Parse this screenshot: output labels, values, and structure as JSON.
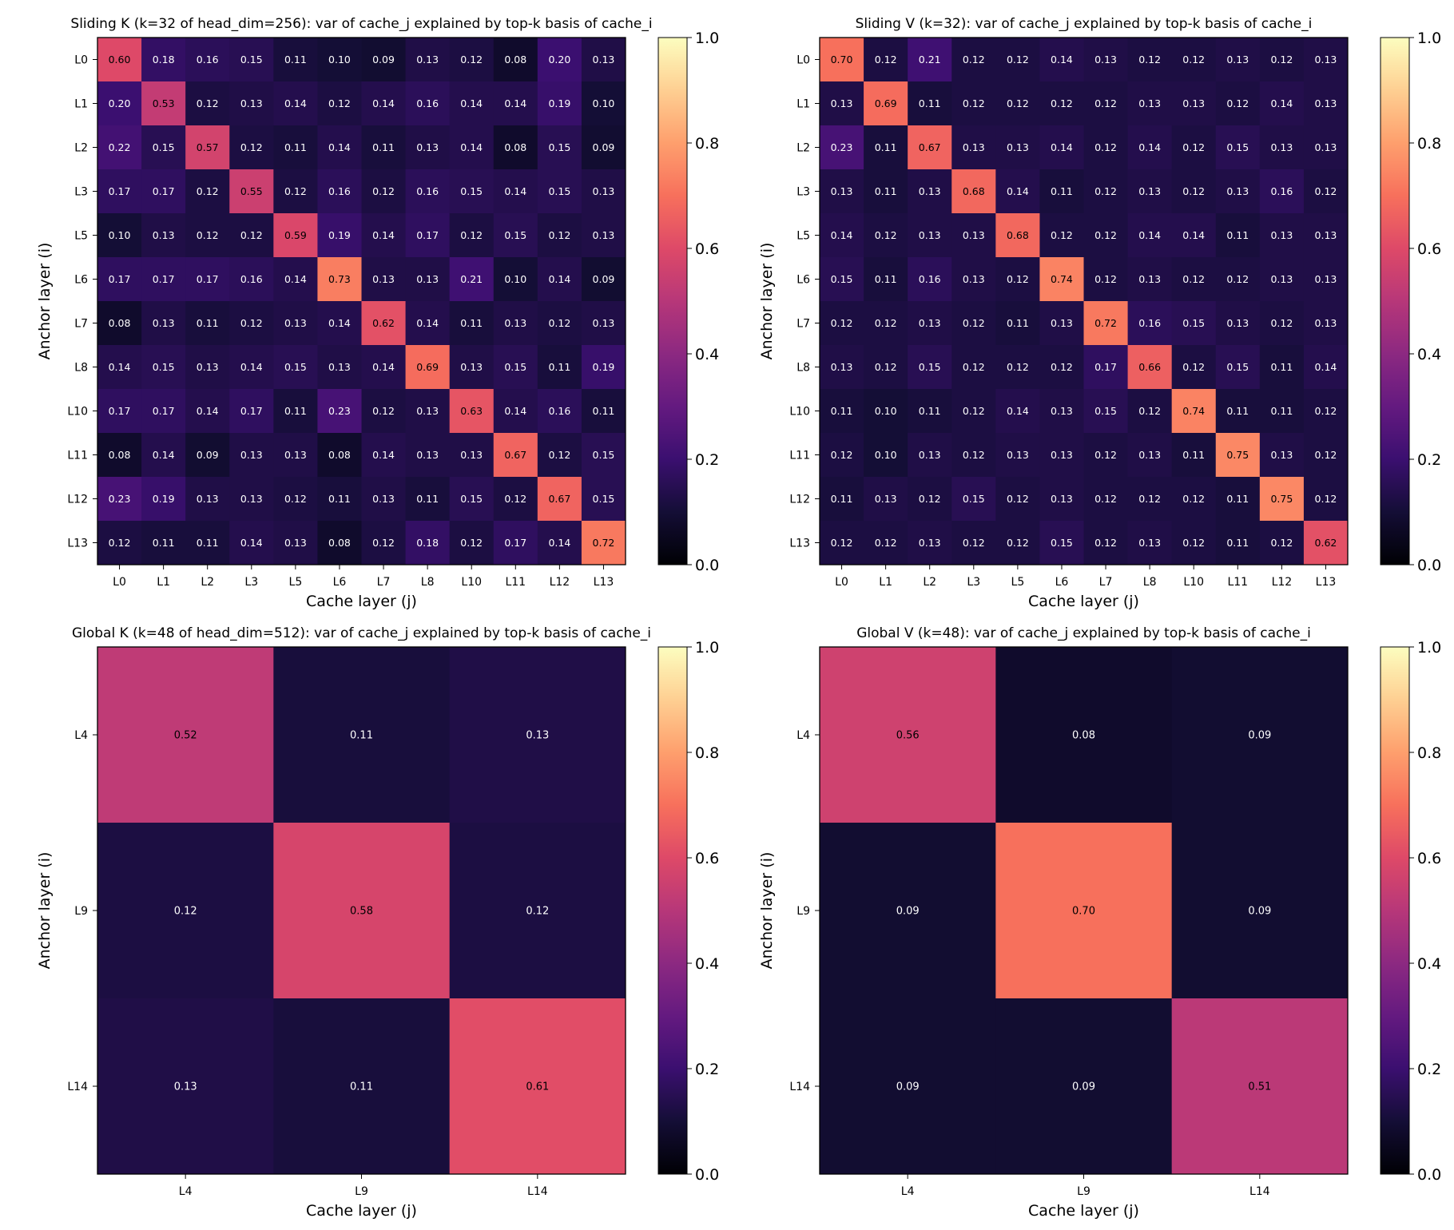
{
  "chart_data": [
    {
      "type": "heatmap",
      "title": "Sliding K (k=32 of head_dim=256): var of cache_j explained by top-k basis of cache_i",
      "xlabel": "Cache layer (j)",
      "ylabel": "Anchor layer (i)",
      "rows": [
        "L0",
        "L1",
        "L2",
        "L3",
        "L5",
        "L6",
        "L7",
        "L8",
        "L10",
        "L11",
        "L12",
        "L13"
      ],
      "cols": [
        "L0",
        "L1",
        "L2",
        "L3",
        "L5",
        "L6",
        "L7",
        "L8",
        "L10",
        "L11",
        "L12",
        "L13"
      ],
      "values": [
        [
          0.6,
          0.18,
          0.16,
          0.15,
          0.11,
          0.1,
          0.09,
          0.13,
          0.12,
          0.08,
          0.2,
          0.13
        ],
        [
          0.2,
          0.53,
          0.12,
          0.13,
          0.14,
          0.12,
          0.14,
          0.16,
          0.14,
          0.14,
          0.19,
          0.1
        ],
        [
          0.22,
          0.15,
          0.57,
          0.12,
          0.11,
          0.14,
          0.11,
          0.13,
          0.14,
          0.08,
          0.15,
          0.09
        ],
        [
          0.17,
          0.17,
          0.12,
          0.55,
          0.12,
          0.16,
          0.12,
          0.16,
          0.15,
          0.14,
          0.15,
          0.13
        ],
        [
          0.1,
          0.13,
          0.12,
          0.12,
          0.59,
          0.19,
          0.14,
          0.17,
          0.12,
          0.15,
          0.12,
          0.13
        ],
        [
          0.17,
          0.17,
          0.17,
          0.16,
          0.14,
          0.73,
          0.13,
          0.13,
          0.21,
          0.1,
          0.14,
          0.09
        ],
        [
          0.08,
          0.13,
          0.11,
          0.12,
          0.13,
          0.14,
          0.62,
          0.14,
          0.11,
          0.13,
          0.12,
          0.13
        ],
        [
          0.14,
          0.15,
          0.13,
          0.14,
          0.15,
          0.13,
          0.14,
          0.69,
          0.13,
          0.15,
          0.11,
          0.19
        ],
        [
          0.17,
          0.17,
          0.14,
          0.17,
          0.11,
          0.23,
          0.12,
          0.13,
          0.63,
          0.14,
          0.16,
          0.11
        ],
        [
          0.08,
          0.14,
          0.09,
          0.13,
          0.13,
          0.08,
          0.14,
          0.13,
          0.13,
          0.67,
          0.12,
          0.15
        ],
        [
          0.23,
          0.19,
          0.13,
          0.13,
          0.12,
          0.11,
          0.13,
          0.11,
          0.15,
          0.12,
          0.67,
          0.15
        ],
        [
          0.12,
          0.11,
          0.11,
          0.14,
          0.13,
          0.08,
          0.12,
          0.18,
          0.12,
          0.17,
          0.14,
          0.72
        ]
      ],
      "vmin": 0.0,
      "vmax": 1.0,
      "colormap": "magma",
      "colorbar_ticks": [
        "0.0",
        "0.2",
        "0.4",
        "0.6",
        "0.8",
        "1.0"
      ]
    },
    {
      "type": "heatmap",
      "title": "Sliding V (k=32): var of cache_j explained by top-k basis of cache_i",
      "xlabel": "Cache layer (j)",
      "ylabel": "Anchor layer (i)",
      "rows": [
        "L0",
        "L1",
        "L2",
        "L3",
        "L5",
        "L6",
        "L7",
        "L8",
        "L10",
        "L11",
        "L12",
        "L13"
      ],
      "cols": [
        "L0",
        "L1",
        "L2",
        "L3",
        "L5",
        "L6",
        "L7",
        "L8",
        "L10",
        "L11",
        "L12",
        "L13"
      ],
      "values": [
        [
          0.7,
          0.12,
          0.21,
          0.12,
          0.12,
          0.14,
          0.13,
          0.12,
          0.12,
          0.13,
          0.12,
          0.13
        ],
        [
          0.13,
          0.69,
          0.11,
          0.12,
          0.12,
          0.12,
          0.12,
          0.13,
          0.13,
          0.12,
          0.14,
          0.13
        ],
        [
          0.23,
          0.11,
          0.67,
          0.13,
          0.13,
          0.14,
          0.12,
          0.14,
          0.12,
          0.15,
          0.13,
          0.13
        ],
        [
          0.13,
          0.11,
          0.13,
          0.68,
          0.14,
          0.11,
          0.12,
          0.13,
          0.12,
          0.13,
          0.16,
          0.12
        ],
        [
          0.14,
          0.12,
          0.13,
          0.13,
          0.68,
          0.12,
          0.12,
          0.14,
          0.14,
          0.11,
          0.13,
          0.13
        ],
        [
          0.15,
          0.11,
          0.16,
          0.13,
          0.12,
          0.74,
          0.12,
          0.13,
          0.12,
          0.12,
          0.13,
          0.13
        ],
        [
          0.12,
          0.12,
          0.13,
          0.12,
          0.11,
          0.13,
          0.72,
          0.16,
          0.15,
          0.13,
          0.12,
          0.13
        ],
        [
          0.13,
          0.12,
          0.15,
          0.12,
          0.12,
          0.12,
          0.17,
          0.66,
          0.12,
          0.15,
          0.11,
          0.14
        ],
        [
          0.11,
          0.1,
          0.11,
          0.12,
          0.14,
          0.13,
          0.15,
          0.12,
          0.74,
          0.11,
          0.11,
          0.12
        ],
        [
          0.12,
          0.1,
          0.13,
          0.12,
          0.13,
          0.13,
          0.12,
          0.13,
          0.11,
          0.75,
          0.13,
          0.12
        ],
        [
          0.11,
          0.13,
          0.12,
          0.15,
          0.12,
          0.13,
          0.12,
          0.12,
          0.12,
          0.11,
          0.75,
          0.12
        ],
        [
          0.12,
          0.12,
          0.13,
          0.12,
          0.12,
          0.15,
          0.12,
          0.13,
          0.12,
          0.11,
          0.12,
          0.62
        ]
      ],
      "vmin": 0.0,
      "vmax": 1.0,
      "colormap": "magma",
      "colorbar_ticks": [
        "0.0",
        "0.2",
        "0.4",
        "0.6",
        "0.8",
        "1.0"
      ]
    },
    {
      "type": "heatmap",
      "title": "Global K (k=48 of head_dim=512): var of cache_j explained by top-k basis of cache_i",
      "xlabel": "Cache layer (j)",
      "ylabel": "Anchor layer (i)",
      "rows": [
        "L4",
        "L9",
        "L14"
      ],
      "cols": [
        "L4",
        "L9",
        "L14"
      ],
      "values": [
        [
          0.52,
          0.11,
          0.13
        ],
        [
          0.12,
          0.58,
          0.12
        ],
        [
          0.13,
          0.11,
          0.61
        ]
      ],
      "vmin": 0.0,
      "vmax": 1.0,
      "colormap": "magma",
      "colorbar_ticks": [
        "0.0",
        "0.2",
        "0.4",
        "0.6",
        "0.8",
        "1.0"
      ]
    },
    {
      "type": "heatmap",
      "title": "Global V (k=48): var of cache_j explained by top-k basis of cache_i",
      "xlabel": "Cache layer (j)",
      "ylabel": "Anchor layer (i)",
      "rows": [
        "L4",
        "L9",
        "L14"
      ],
      "cols": [
        "L4",
        "L9",
        "L14"
      ],
      "values": [
        [
          0.56,
          0.08,
          0.09
        ],
        [
          0.09,
          0.7,
          0.09
        ],
        [
          0.09,
          0.09,
          0.51
        ]
      ],
      "vmin": 0.0,
      "vmax": 1.0,
      "colormap": "magma",
      "colorbar_ticks": [
        "0.0",
        "0.2",
        "0.4",
        "0.6",
        "0.8",
        "1.0"
      ]
    }
  ]
}
